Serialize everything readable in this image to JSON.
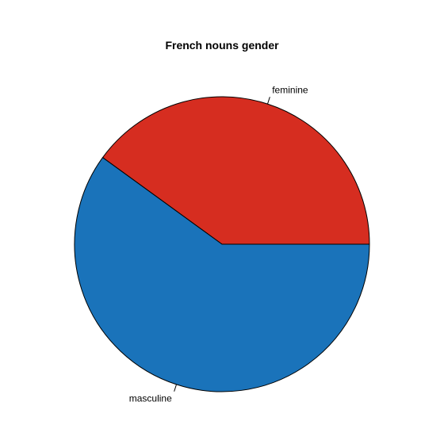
{
  "chart_data": {
    "type": "pie",
    "title": "French nouns gender",
    "slices": [
      {
        "label": "feminine",
        "value": 40.0,
        "color": "#d62d20"
      },
      {
        "label": "masculine",
        "value": 60.0,
        "color": "#1a73ba"
      }
    ],
    "start": "3 o'clock",
    "direction": "counter-clockwise",
    "border_color": "#000000"
  }
}
